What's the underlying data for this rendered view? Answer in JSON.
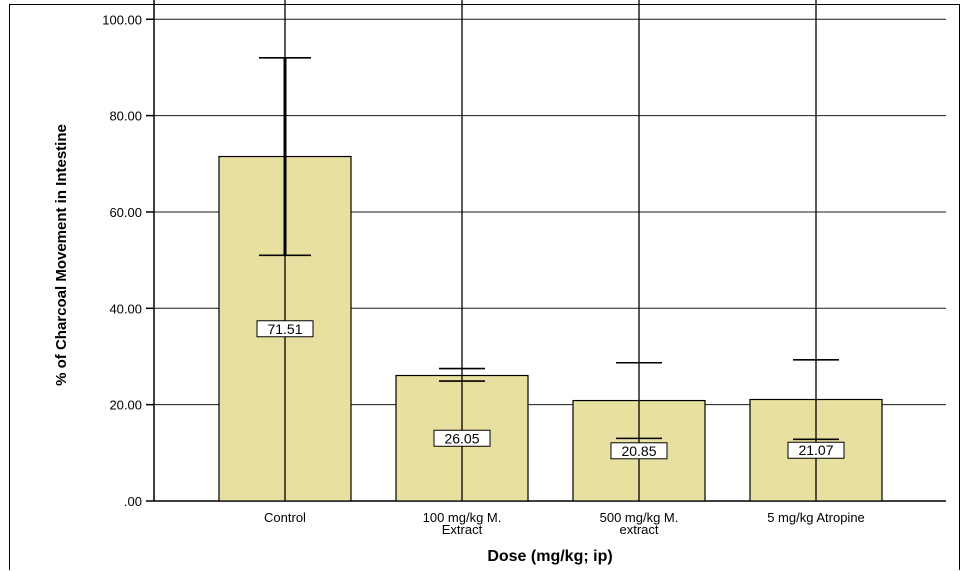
{
  "chart_data": {
    "type": "bar",
    "categories": [
      [
        "Control"
      ],
      [
        "100 mg/kg M.",
        "Extract"
      ],
      [
        "500 mg/kg M.",
        "extract"
      ],
      [
        "5 mg/kg Atropine"
      ]
    ],
    "values": [
      71.51,
      26.05,
      20.85,
      21.07
    ],
    "value_labels": [
      "71.51",
      "26.05",
      "20.85",
      "21.07"
    ],
    "error_bars": [
      {
        "low": 51.0,
        "high": 92.0
      },
      {
        "low": 24.9,
        "high": 27.5
      },
      {
        "low": 13.0,
        "high": 28.7
      },
      {
        "low": 12.8,
        "high": 29.3
      }
    ],
    "xlabel": "Dose (mg/kg; ip)",
    "ylabel": "% of Charcoal Movement in Intestine",
    "ylim": [
      0,
      104
    ],
    "yticks": [
      0,
      20,
      40,
      60,
      80,
      100
    ],
    "ytick_labels": [
      ".00",
      "20.00",
      "40.00",
      "60.00",
      "80.00",
      "100.00"
    ],
    "grid": true,
    "bar_color": "#e8e0a0"
  }
}
